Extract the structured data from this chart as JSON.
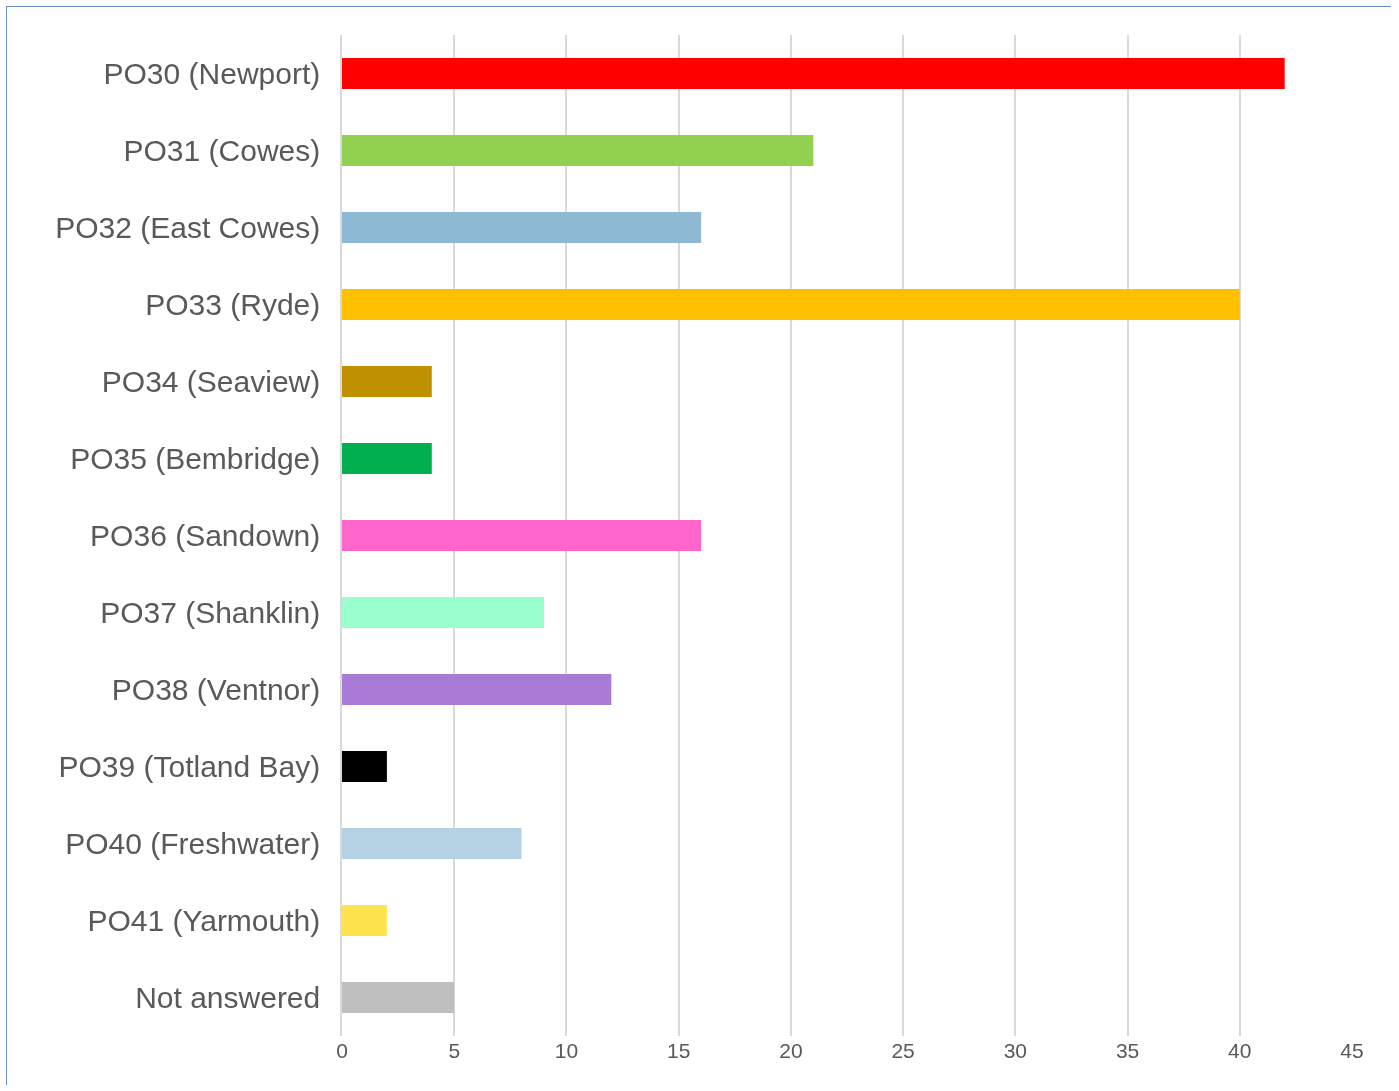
{
  "chart_data": {
    "type": "bar",
    "orientation": "horizontal",
    "categories": [
      "PO30 (Newport)",
      "PO31 (Cowes)",
      "PO32 (East Cowes)",
      "PO33 (Ryde)",
      "PO34 (Seaview)",
      "PO35 (Bembridge)",
      "PO36 (Sandown)",
      "PO37 (Shanklin)",
      "PO38 (Ventnor)",
      "PO39 (Totland Bay)",
      "PO40 (Freshwater)",
      "PO41 (Yarmouth)",
      "Not answered"
    ],
    "values": [
      42,
      21,
      16,
      40,
      4,
      4,
      16,
      9,
      12,
      2,
      8,
      2,
      5
    ],
    "colors": [
      "#ff0000",
      "#92d050",
      "#8db9d4",
      "#ffc000",
      "#bf9000",
      "#00b050",
      "#ff66cc",
      "#99ffcc",
      "#a97bd6",
      "#000000",
      "#b4d2e3",
      "#ffe34d",
      "#bfbfbf"
    ],
    "xlim": [
      0,
      45
    ],
    "xticks": [
      0,
      5,
      10,
      15,
      20,
      25,
      30,
      35,
      40,
      45
    ],
    "grid": "x"
  }
}
